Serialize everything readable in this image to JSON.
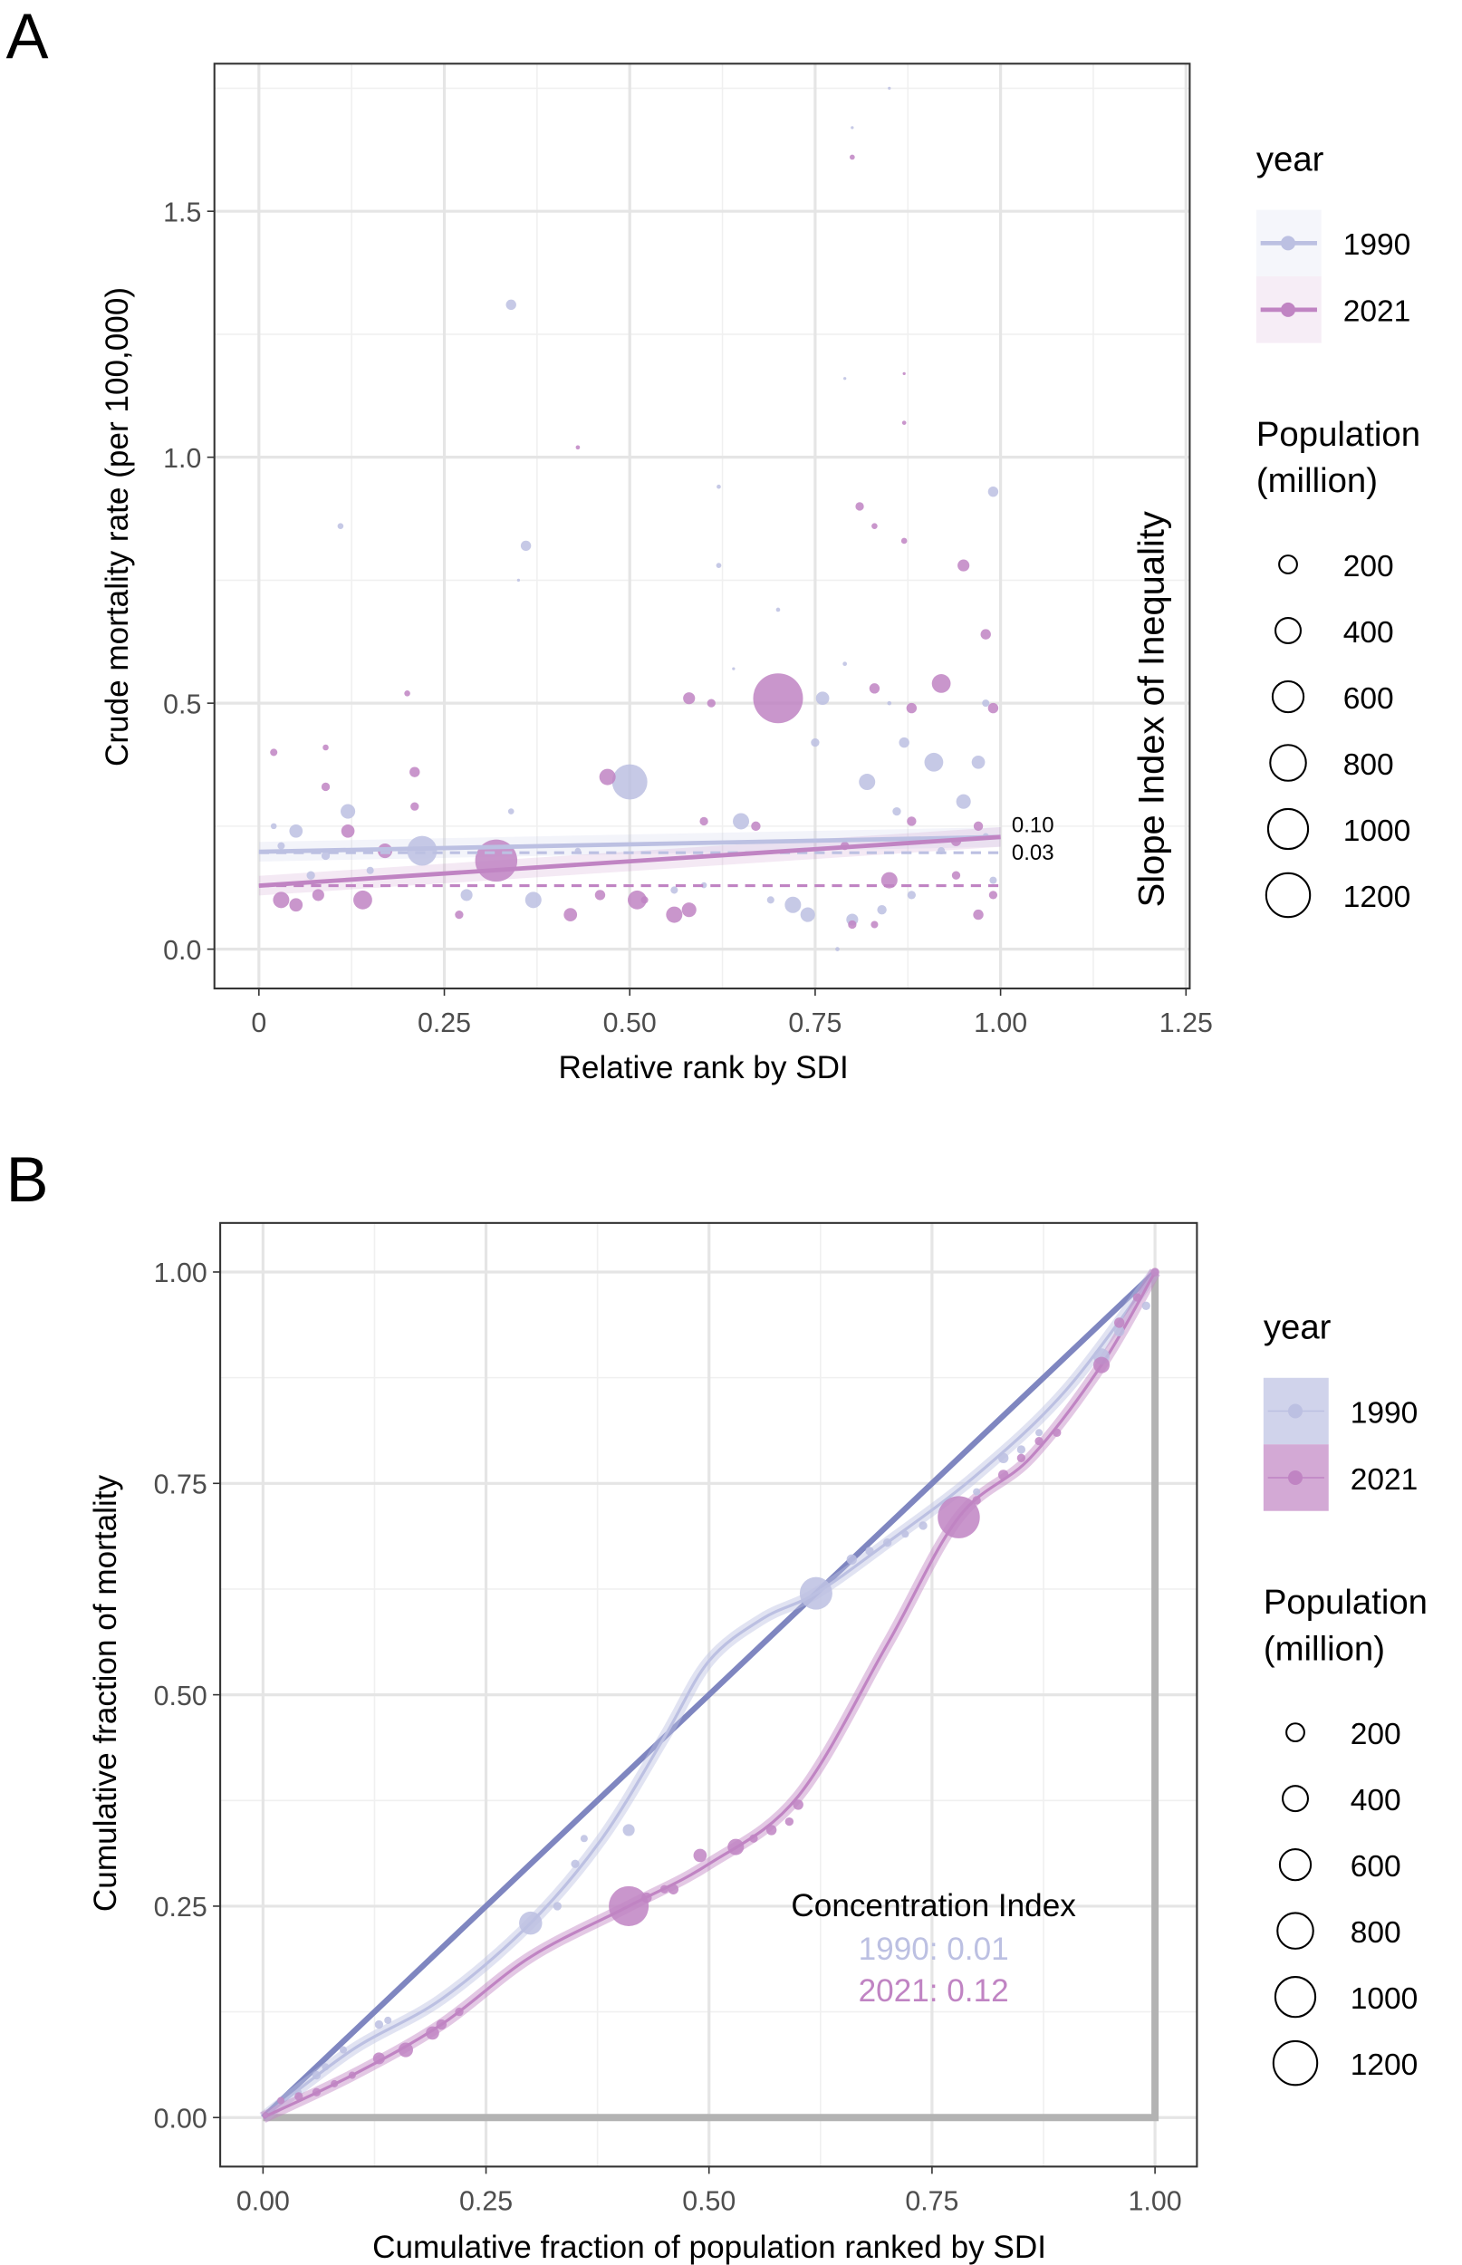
{
  "colors": {
    "y1990": "#bcc0e2",
    "y2021": "#c084c3",
    "equality": "#7f86c0",
    "grid": "#e5e5e5",
    "corner": "#b3b3b3"
  },
  "chart_data": [
    {
      "panel": "A",
      "type": "scatter",
      "xlabel": "Relative rank by SDI",
      "ylabel": "Crude mortality rate (per 100,000)",
      "side_label": "Slope Index of Inequality",
      "xlim": [
        -0.06,
        1.255
      ],
      "ylim": [
        -0.08,
        1.8
      ],
      "xticks": [
        "0",
        "0.25",
        "0.50",
        "0.75",
        "1.00",
        "1.25"
      ],
      "xtick_values": [
        0,
        0.25,
        0.5,
        0.75,
        1.0,
        1.25
      ],
      "yticks": [
        "0.0",
        "0.5",
        "1.0",
        "1.5"
      ],
      "ytick_values": [
        0,
        0.5,
        1.0,
        1.5
      ],
      "grid": true,
      "sii_labels": [
        "0.10",
        "0.03"
      ],
      "regression": {
        "1990": {
          "x": [
            0,
            1
          ],
          "y": [
            0.198,
            0.228
          ],
          "mean": 0.196
        },
        "2021": {
          "x": [
            0,
            1
          ],
          "y": [
            0.129,
            0.228
          ],
          "mean": 0.129
        }
      },
      "series": [
        {
          "name": "1990",
          "points": [
            [
              0.34,
              1.31,
              60
            ],
            [
              0.36,
              0.82,
              60
            ],
            [
              0.11,
              0.86,
              20
            ],
            [
              0.99,
              0.93,
              60
            ],
            [
              0.62,
              0.94,
              10
            ],
            [
              0.62,
              0.78,
              15
            ],
            [
              0.35,
              0.75,
              5
            ],
            [
              0.8,
              1.67,
              5
            ],
            [
              0.79,
              1.16,
              5
            ],
            [
              0.85,
              1.75,
              5
            ],
            [
              0.5,
              0.34,
              700
            ],
            [
              0.22,
              0.2,
              500
            ],
            [
              0.65,
              0.26,
              150
            ],
            [
              0.76,
              0.51,
              100
            ],
            [
              0.91,
              0.38,
              200
            ],
            [
              0.82,
              0.34,
              150
            ],
            [
              0.95,
              0.3,
              120
            ],
            [
              0.97,
              0.38,
              100
            ],
            [
              0.05,
              0.24,
              100
            ],
            [
              0.12,
              0.28,
              120
            ],
            [
              0.37,
              0.1,
              150
            ],
            [
              0.72,
              0.09,
              150
            ],
            [
              0.28,
              0.11,
              80
            ],
            [
              0.74,
              0.07,
              120
            ],
            [
              0.02,
              0.25,
              20
            ],
            [
              0.03,
              0.21,
              30
            ],
            [
              0.07,
              0.15,
              40
            ],
            [
              0.09,
              0.19,
              40
            ],
            [
              0.15,
              0.16,
              30
            ],
            [
              0.34,
              0.28,
              20
            ],
            [
              0.43,
              0.2,
              20
            ],
            [
              0.56,
              0.12,
              30
            ],
            [
              0.6,
              0.13,
              20
            ],
            [
              0.64,
              0.57,
              5
            ],
            [
              0.69,
              0.1,
              30
            ],
            [
              0.75,
              0.42,
              40
            ],
            [
              0.8,
              0.06,
              80
            ],
            [
              0.84,
              0.08,
              50
            ],
            [
              0.87,
              0.42,
              60
            ],
            [
              0.88,
              0.11,
              40
            ],
            [
              0.92,
              0.2,
              30
            ],
            [
              0.98,
              0.5,
              30
            ],
            [
              0.99,
              0.14,
              30
            ],
            [
              0.78,
              0.0,
              10
            ],
            [
              0.86,
              0.28,
              40
            ],
            [
              0.98,
              0.23,
              20
            ],
            [
              0.7,
              0.69,
              10
            ],
            [
              0.79,
              0.58,
              10
            ],
            [
              0.85,
              0.5,
              10
            ]
          ]
        },
        {
          "name": "2021",
          "points": [
            [
              0.7,
              0.51,
              1400
            ],
            [
              0.32,
              0.18,
              1000
            ],
            [
              0.8,
              1.61,
              15
            ],
            [
              0.43,
              1.02,
              10
            ],
            [
              0.87,
              1.17,
              5
            ],
            [
              0.87,
              1.07,
              10
            ],
            [
              0.81,
              0.9,
              40
            ],
            [
              0.83,
              0.86,
              20
            ],
            [
              0.87,
              0.83,
              20
            ],
            [
              0.95,
              0.78,
              80
            ],
            [
              0.98,
              0.64,
              60
            ],
            [
              0.92,
              0.54,
              200
            ],
            [
              0.99,
              0.49,
              60
            ],
            [
              0.58,
              0.51,
              80
            ],
            [
              0.61,
              0.5,
              40
            ],
            [
              0.47,
              0.35,
              150
            ],
            [
              0.2,
              0.52,
              20
            ],
            [
              0.02,
              0.4,
              30
            ],
            [
              0.09,
              0.41,
              20
            ],
            [
              0.09,
              0.33,
              40
            ],
            [
              0.12,
              0.24,
              100
            ],
            [
              0.17,
              0.2,
              120
            ],
            [
              0.21,
              0.36,
              60
            ],
            [
              0.21,
              0.29,
              40
            ],
            [
              0.14,
              0.1,
              200
            ],
            [
              0.05,
              0.09,
              100
            ],
            [
              0.03,
              0.1,
              150
            ],
            [
              0.08,
              0.11,
              80
            ],
            [
              0.27,
              0.07,
              40
            ],
            [
              0.42,
              0.07,
              100
            ],
            [
              0.46,
              0.11,
              60
            ],
            [
              0.51,
              0.1,
              200
            ],
            [
              0.56,
              0.07,
              150
            ],
            [
              0.58,
              0.08,
              120
            ],
            [
              0.67,
              0.25,
              50
            ],
            [
              0.85,
              0.14,
              150
            ],
            [
              0.88,
              0.26,
              50
            ],
            [
              0.94,
              0.22,
              60
            ],
            [
              0.97,
              0.07,
              60
            ],
            [
              0.99,
              0.11,
              40
            ],
            [
              0.8,
              0.05,
              40
            ],
            [
              0.83,
              0.05,
              30
            ],
            [
              0.6,
              0.26,
              40
            ],
            [
              0.88,
              0.49,
              60
            ],
            [
              0.83,
              0.53,
              60
            ],
            [
              0.97,
              0.25,
              50
            ],
            [
              0.52,
              0.1,
              30
            ],
            [
              0.79,
              0.21,
              40
            ],
            [
              0.94,
              0.15,
              40
            ]
          ]
        }
      ],
      "legend": {
        "color_title": "year",
        "color_entries": [
          "1990",
          "2021"
        ],
        "size_title": [
          "Population",
          "(million)"
        ],
        "size_entries": [
          "200",
          "400",
          "600",
          "800",
          "1000",
          "1200"
        ],
        "size_values": [
          200,
          400,
          600,
          800,
          1000,
          1200
        ],
        "placement": "right"
      }
    },
    {
      "panel": "B",
      "type": "scatter",
      "xlabel": "Cumulative fraction of population ranked by SDI",
      "ylabel": "Cumulative fraction of mortality",
      "xlim": [
        -0.048,
        1.047
      ],
      "ylim": [
        -0.058,
        1.058
      ],
      "xticks": [
        "0.00",
        "0.25",
        "0.50",
        "0.75",
        "1.00"
      ],
      "xtick_values": [
        0,
        0.25,
        0.5,
        0.75,
        1.0
      ],
      "yticks": [
        "0.00",
        "0.25",
        "0.50",
        "0.75",
        "1.00"
      ],
      "ytick_values": [
        0,
        0.25,
        0.5,
        0.75,
        1.0
      ],
      "grid": true,
      "annotation": {
        "title": "Concentration Index",
        "lines": [
          "1990: 0.01",
          "2021: 0.12"
        ]
      },
      "curves": {
        "1990": [
          [
            0,
            0
          ],
          [
            0.1,
            0.08
          ],
          [
            0.2,
            0.14
          ],
          [
            0.3,
            0.23
          ],
          [
            0.38,
            0.33
          ],
          [
            0.45,
            0.45
          ],
          [
            0.5,
            0.54
          ],
          [
            0.56,
            0.59
          ],
          [
            0.62,
            0.62
          ],
          [
            0.7,
            0.68
          ],
          [
            0.8,
            0.76
          ],
          [
            0.9,
            0.86
          ],
          [
            1,
            1
          ]
        ],
        "2021": [
          [
            0,
            0
          ],
          [
            0.1,
            0.05
          ],
          [
            0.2,
            0.11
          ],
          [
            0.3,
            0.19
          ],
          [
            0.41,
            0.25
          ],
          [
            0.5,
            0.3
          ],
          [
            0.6,
            0.38
          ],
          [
            0.7,
            0.56
          ],
          [
            0.78,
            0.71
          ],
          [
            0.86,
            0.78
          ],
          [
            0.94,
            0.89
          ],
          [
            1,
            1
          ]
        ]
      },
      "series": [
        {
          "name": "1990",
          "points": [
            [
              0.003,
              0.003,
              10
            ],
            [
              0.02,
              0.02,
              20
            ],
            [
              0.04,
              0.03,
              20
            ],
            [
              0.06,
              0.05,
              40
            ],
            [
              0.07,
              0.06,
              30
            ],
            [
              0.09,
              0.08,
              30
            ],
            [
              0.13,
              0.11,
              40
            ],
            [
              0.14,
              0.115,
              30
            ],
            [
              0.3,
              0.23,
              300
            ],
            [
              0.33,
              0.25,
              40
            ],
            [
              0.35,
              0.3,
              40
            ],
            [
              0.36,
              0.33,
              30
            ],
            [
              0.41,
              0.34,
              80
            ],
            [
              0.62,
              0.62,
              600
            ],
            [
              0.66,
              0.66,
              60
            ],
            [
              0.68,
              0.67,
              40
            ],
            [
              0.7,
              0.68,
              40
            ],
            [
              0.72,
              0.69,
              30
            ],
            [
              0.74,
              0.7,
              40
            ],
            [
              0.8,
              0.74,
              30
            ],
            [
              0.83,
              0.78,
              60
            ],
            [
              0.85,
              0.79,
              40
            ],
            [
              0.87,
              0.81,
              30
            ],
            [
              0.94,
              0.9,
              150
            ],
            [
              0.96,
              0.93,
              60
            ],
            [
              0.99,
              0.96,
              40
            ],
            [
              1,
              1,
              30
            ]
          ]
        },
        {
          "name": "2021",
          "points": [
            [
              0.003,
              0.003,
              20
            ],
            [
              0.02,
              0.02,
              30
            ],
            [
              0.04,
              0.025,
              40
            ],
            [
              0.06,
              0.03,
              40
            ],
            [
              0.08,
              0.04,
              30
            ],
            [
              0.1,
              0.05,
              30
            ],
            [
              0.13,
              0.07,
              80
            ],
            [
              0.16,
              0.08,
              120
            ],
            [
              0.19,
              0.1,
              100
            ],
            [
              0.2,
              0.11,
              60
            ],
            [
              0.22,
              0.125,
              40
            ],
            [
              0.41,
              0.25,
              900
            ],
            [
              0.43,
              0.26,
              60
            ],
            [
              0.45,
              0.27,
              40
            ],
            [
              0.46,
              0.27,
              60
            ],
            [
              0.49,
              0.31,
              100
            ],
            [
              0.53,
              0.32,
              150
            ],
            [
              0.55,
              0.33,
              40
            ],
            [
              0.57,
              0.34,
              60
            ],
            [
              0.59,
              0.35,
              40
            ],
            [
              0.6,
              0.37,
              60
            ],
            [
              0.78,
              0.71,
              1000
            ],
            [
              0.8,
              0.73,
              40
            ],
            [
              0.83,
              0.76,
              60
            ],
            [
              0.85,
              0.78,
              40
            ],
            [
              0.87,
              0.8,
              40
            ],
            [
              0.89,
              0.81,
              40
            ],
            [
              0.94,
              0.89,
              150
            ],
            [
              0.96,
              0.94,
              60
            ],
            [
              0.98,
              0.97,
              40
            ],
            [
              1,
              1,
              40
            ]
          ]
        }
      ],
      "legend": {
        "color_title": "year",
        "color_entries": [
          "1990",
          "2021"
        ],
        "size_title": [
          "Population",
          "(million)"
        ],
        "size_entries": [
          "200",
          "400",
          "600",
          "800",
          "1000",
          "1200"
        ],
        "size_values": [
          200,
          400,
          600,
          800,
          1000,
          1200
        ],
        "placement": "right"
      }
    }
  ],
  "panels": {
    "a": "A",
    "b": "B"
  }
}
